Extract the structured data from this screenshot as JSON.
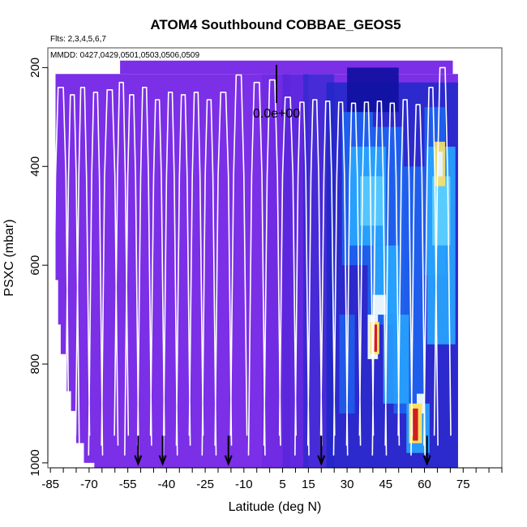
{
  "chart_data": {
    "type": "heatmap",
    "title": "ATOM4 Southbound COBBAE_GEOS5",
    "flights_label": "Flts: 2,3,4,5,6,7",
    "dates_label": "MMDD: 0427,0429,0501,0503,0506,0509",
    "xlabel": "Latitude (deg N)",
    "ylabel": "PSXC (mbar)",
    "x_ticks": [
      -85,
      -70,
      -55,
      -40,
      -25,
      -10,
      5,
      15,
      30,
      45,
      60,
      75
    ],
    "x_tick_labels": [
      "-85",
      "-70",
      "-55",
      "-40",
      "-25",
      "-10",
      "5",
      "15",
      "30",
      "45",
      "60",
      "75"
    ],
    "y_ticks": [
      200,
      400,
      600,
      800,
      1000
    ],
    "y_tick_labels": [
      "200",
      "400",
      "600",
      "800",
      "1000"
    ],
    "xlim": [
      -86,
      90
    ],
    "ylim": [
      1010,
      160
    ],
    "scale_legend_label": "0.0e+00",
    "arrow_latitudes": [
      -51,
      -41.5,
      -16,
      20,
      61
    ],
    "colors": {
      "background_fill": "#7b2fe6",
      "deep_blue": "#1e28c8",
      "mid_blue": "#1e64f0",
      "light_blue": "#28a6ff",
      "cyan": "#5fd0ff",
      "pale": "#e6f4ff",
      "yellow": "#ffe066",
      "red": "#d21e1e",
      "track": "#ffffff"
    }
  }
}
